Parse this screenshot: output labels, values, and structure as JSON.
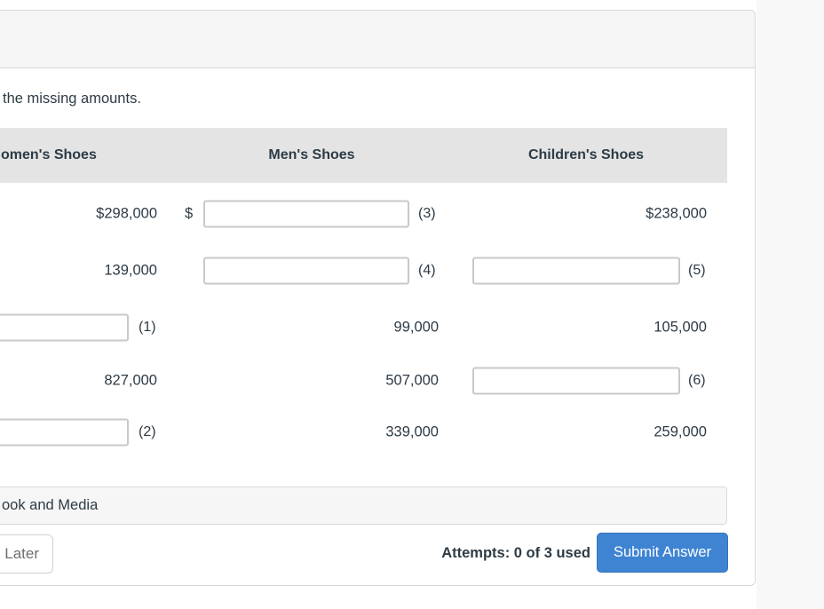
{
  "instruction": "the missing amounts.",
  "table": {
    "headers": {
      "col1": "omen's Shoes",
      "col2": "Men's Shoes",
      "col3": "Children's Shoes"
    },
    "rows": [
      {
        "col1_value": "$298,000",
        "col2_prefix": "$",
        "col2_input": {
          "value": "",
          "label": "(3)"
        },
        "col3_value": "$238,000"
      },
      {
        "col1_value": "139,000",
        "col2_input": {
          "value": "",
          "label": "(4)"
        },
        "col3_input": {
          "value": "",
          "label": "(5)"
        }
      },
      {
        "col1_input": {
          "value": "",
          "label": "(1)"
        },
        "col2_value": "99,000",
        "col3_value": "105,000"
      },
      {
        "col1_value": "827,000",
        "col2_value": "507,000",
        "col3_input": {
          "value": "",
          "label": "(6)"
        }
      },
      {
        "col1_input": {
          "value": "",
          "label": "(2)"
        },
        "col2_value": "339,000",
        "col3_value": "259,000"
      }
    ]
  },
  "footer": {
    "etextbook_bar_label": "ook and Media",
    "save_later_label": "Later",
    "attempts_label": "Attempts: 0 of 3 used",
    "submit_label": "Submit Answer"
  },
  "colors": {
    "submit_blue": "#3e84d2",
    "text_dark": "#2d3b45",
    "header_band_gray": "#e4e4e4",
    "accordion_gray": "#f5f5f5",
    "right_panel_gray": "#f8f8f8"
  }
}
